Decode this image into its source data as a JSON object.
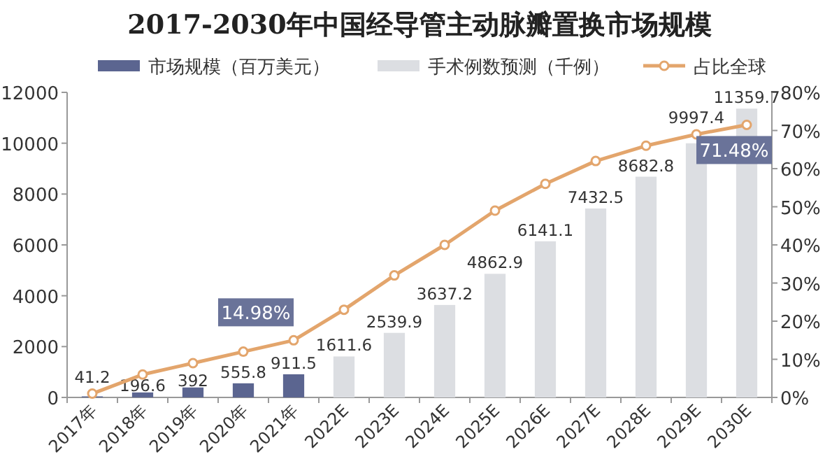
{
  "chart_data": {
    "type": "bar",
    "title": "2017-2030年中国经导管主动脉瓣置换市场规模",
    "categories": [
      "2017年",
      "2018年",
      "2019年",
      "2020年",
      "2021年",
      "2022E",
      "2023E",
      "2024E",
      "2025E",
      "2026E",
      "2027E",
      "2028E",
      "2029E",
      "2030E"
    ],
    "series": [
      {
        "name": "市场规模（百万美元）",
        "color": "#5b6590",
        "values": [
          41.2,
          196.6,
          392,
          555.8,
          911.5,
          null,
          null,
          null,
          null,
          null,
          null,
          null,
          null,
          null
        ]
      },
      {
        "name": "手术例数预测（千例）",
        "color": "#dcdee2",
        "values": [
          null,
          null,
          null,
          null,
          null,
          1611.6,
          2539.9,
          3637.2,
          4862.9,
          6141.1,
          7432.5,
          8682.8,
          9997.4,
          11359.7
        ]
      },
      {
        "name": "占比全球",
        "type": "line",
        "axis": "y2",
        "color": "#e3a56c",
        "marker": "circle",
        "values": [
          1,
          6,
          9,
          12,
          14.98,
          23,
          32,
          40,
          49,
          56,
          62,
          66,
          69,
          71.48
        ],
        "value_labels": [
          null,
          null,
          null,
          null,
          "14.98%",
          null,
          null,
          null,
          null,
          null,
          null,
          null,
          null,
          "71.48%"
        ]
      }
    ],
    "data_labels": true,
    "ylim": [
      0,
      12000
    ],
    "yticks": [
      0,
      2000,
      4000,
      6000,
      8000,
      10000,
      12000
    ],
    "y2lim": [
      0,
      80
    ],
    "y2ticks": [
      {
        "value": 0,
        "label": "0%"
      },
      {
        "value": 10,
        "label": "10%"
      },
      {
        "value": 20,
        "label": "20%"
      },
      {
        "value": 30,
        "label": "30%"
      },
      {
        "value": 40,
        "label": "40%"
      },
      {
        "value": 50,
        "label": "50%"
      },
      {
        "value": 60,
        "label": "60%"
      },
      {
        "value": 70,
        "label": "70%"
      },
      {
        "value": 80,
        "label": "80%"
      }
    ],
    "grid": false,
    "legend": "top"
  }
}
